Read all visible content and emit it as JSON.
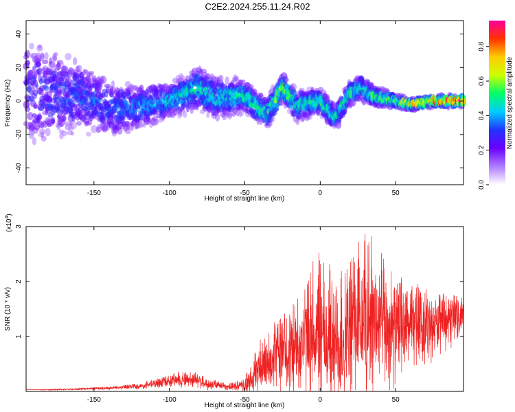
{
  "title": "C2E2.2024.255.11.24.R02",
  "chart_data": [
    {
      "type": "heatmap",
      "xlabel": "Height of straight line (km)",
      "ylabel": "Frequency (Hz)",
      "xlim": [
        -195,
        95
      ],
      "ylim": [
        -50,
        48
      ],
      "x_ticks": [
        -150,
        -100,
        -50,
        0,
        50
      ],
      "y_ticks": [
        -40,
        -20,
        0,
        20,
        40
      ],
      "colorbar": {
        "label": "Normalized spectral amplitude",
        "range": [
          0,
          0.95
        ],
        "ticks": [
          "0.0",
          "0.2",
          "0.4",
          "0.6",
          "0.8"
        ],
        "colors": [
          "#ffffff",
          "#b07cff",
          "#6a00ff",
          "#2233ff",
          "#00ccff",
          "#00ff66",
          "#ccff00",
          "#ffcc00",
          "#ff3300",
          "#ff0099"
        ]
      },
      "ridge": [
        {
          "x": -195,
          "center": 5,
          "spread": 30,
          "amp": 0.3
        },
        {
          "x": -160,
          "center": 3,
          "spread": 18,
          "amp": 0.35
        },
        {
          "x": -135,
          "center": -5,
          "spread": 14,
          "amp": 0.35
        },
        {
          "x": -100,
          "center": 0,
          "spread": 8,
          "amp": 0.45
        },
        {
          "x": -80,
          "center": 8,
          "spread": 10,
          "amp": 0.5
        },
        {
          "x": -70,
          "center": 2,
          "spread": 10,
          "amp": 0.45
        },
        {
          "x": -50,
          "center": 3,
          "spread": 8,
          "amp": 0.5
        },
        {
          "x": -35,
          "center": -8,
          "spread": 7,
          "amp": 0.55
        },
        {
          "x": -25,
          "center": 8,
          "spread": 7,
          "amp": 0.6
        },
        {
          "x": -15,
          "center": -3,
          "spread": 7,
          "amp": 0.5
        },
        {
          "x": 0,
          "center": 0,
          "spread": 6,
          "amp": 0.55
        },
        {
          "x": 10,
          "center": -10,
          "spread": 6,
          "amp": 0.5
        },
        {
          "x": 20,
          "center": 5,
          "spread": 6,
          "amp": 0.55
        },
        {
          "x": 27,
          "center": 8,
          "spread": 6,
          "amp": 0.5
        },
        {
          "x": 35,
          "center": 3,
          "spread": 5,
          "amp": 0.55
        },
        {
          "x": 50,
          "center": 0,
          "spread": 3,
          "amp": 0.6
        },
        {
          "x": 60,
          "center": -2,
          "spread": 2.5,
          "amp": 0.75
        },
        {
          "x": 75,
          "center": 0,
          "spread": 2.5,
          "amp": 0.85
        },
        {
          "x": 95,
          "center": 0,
          "spread": 2.5,
          "amp": 0.95
        }
      ]
    },
    {
      "type": "line",
      "xlabel": "Height of straight line (km)",
      "ylabel": "SNR (10 * v/v)",
      "y_multiplier": "(x10",
      "y_multiplier_exp": "4",
      "y_multiplier_close": ")",
      "xlim": [
        -195,
        95
      ],
      "ylim": [
        0,
        3.0
      ],
      "x_ticks": [
        -150,
        -100,
        -50,
        0,
        50
      ],
      "y_ticks": [
        1,
        2,
        3
      ],
      "color": "#ee2222",
      "series": [
        {
          "x": [
            -195,
            -180,
            -160,
            -140,
            -120,
            -100,
            -90,
            -80,
            -75,
            -70,
            -60,
            -50,
            -45,
            -40,
            -35,
            -30,
            -20,
            -10,
            0,
            5,
            10,
            20,
            30,
            40,
            50,
            60,
            70,
            80,
            90,
            95
          ],
          "y": [
            0.03,
            0.03,
            0.04,
            0.06,
            0.09,
            0.18,
            0.22,
            0.2,
            0.1,
            0.12,
            0.08,
            0.1,
            0.2,
            0.4,
            0.55,
            0.6,
            0.72,
            0.95,
            1.05,
            0.9,
            0.8,
            1.1,
            1.3,
            1.2,
            1.1,
            1.2,
            1.15,
            1.2,
            1.3,
            1.3
          ],
          "envelope": [
            0.03,
            0.04,
            0.06,
            0.09,
            0.15,
            0.3,
            0.4,
            0.35,
            0.2,
            0.22,
            0.15,
            0.25,
            0.6,
            0.95,
            1.2,
            1.3,
            1.6,
            2.2,
            2.6,
            2.4,
            2.2,
            2.6,
            3.0,
            2.6,
            2.2,
            2.0,
            1.9,
            1.8,
            1.75,
            1.7
          ]
        }
      ]
    }
  ]
}
